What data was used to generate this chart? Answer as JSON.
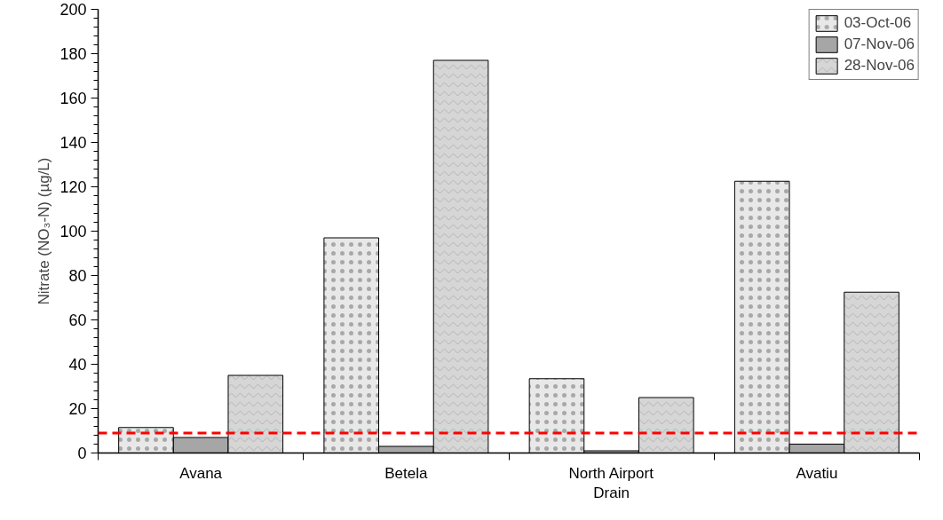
{
  "chart_data": {
    "type": "bar",
    "ylabel": "Nitrate (NO₃-N) (µg/L)",
    "categories": [
      "Avana",
      "Betela",
      "North Airport Drain",
      "Avatiu"
    ],
    "series": [
      {
        "name": "03-Oct-06",
        "color": "#e8e8e8",
        "values": [
          11.5,
          97,
          33.5,
          122.5
        ]
      },
      {
        "name": "07-Nov-06",
        "color": "#a6a6a6",
        "values": [
          7,
          3,
          1,
          4
        ]
      },
      {
        "name": "28-Nov-06",
        "color": "#d6d6d6",
        "values": [
          35,
          177,
          25,
          72.5
        ]
      }
    ],
    "ylim": [
      0,
      200
    ],
    "yticks": [
      0,
      20,
      40,
      60,
      80,
      100,
      120,
      140,
      160,
      180,
      200
    ],
    "ref_lines": [
      {
        "axis": "y",
        "value": 9,
        "color": "#ff0000",
        "line_style": "dashed"
      }
    ],
    "grid": false,
    "legend": "top right"
  }
}
